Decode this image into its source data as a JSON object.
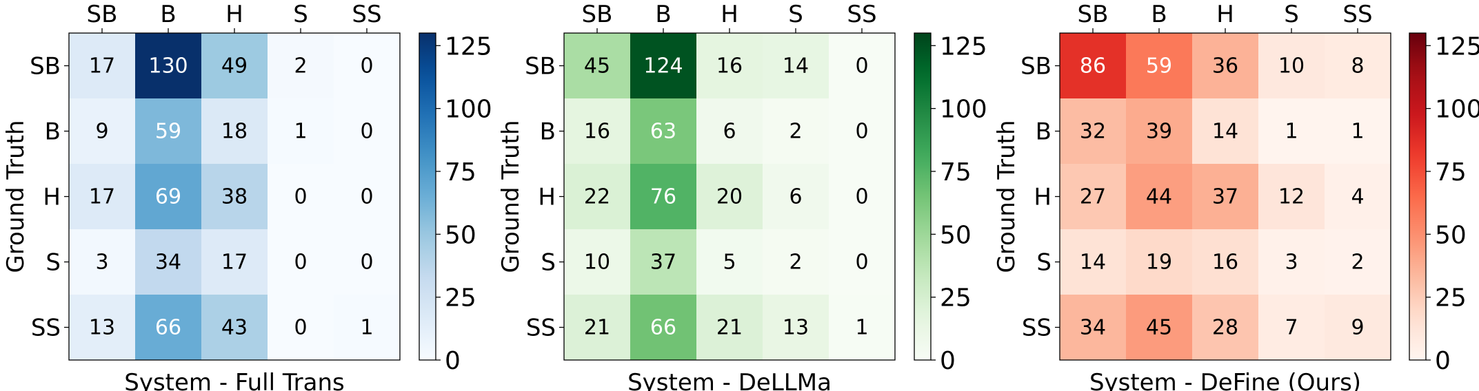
{
  "figure": {
    "panels": [
      "Full Trans",
      "DeLLMa",
      "DeFine (Ours)"
    ]
  },
  "chart_data": [
    {
      "type": "heatmap",
      "xlabel": "System - Full Trans",
      "ylabel": "Ground Truth",
      "x_categories": [
        "SB",
        "B",
        "H",
        "S",
        "SS"
      ],
      "y_categories": [
        "SB",
        "B",
        "H",
        "S",
        "SS"
      ],
      "values": [
        [
          17,
          130,
          49,
          2,
          0
        ],
        [
          9,
          59,
          18,
          1,
          0
        ],
        [
          17,
          69,
          38,
          0,
          0
        ],
        [
          3,
          34,
          17,
          0,
          0
        ],
        [
          13,
          66,
          43,
          0,
          1
        ]
      ],
      "colorbar": {
        "range": [
          0,
          130
        ],
        "ticks": [
          0,
          25,
          50,
          75,
          100,
          125
        ]
      },
      "colormap": "Blues",
      "colors": {
        "low": "#f7fbff",
        "high": "#08306b"
      }
    },
    {
      "type": "heatmap",
      "xlabel": "System - DeLLMa",
      "ylabel": "Ground Truth",
      "x_categories": [
        "SB",
        "B",
        "H",
        "S",
        "SS"
      ],
      "y_categories": [
        "SB",
        "B",
        "H",
        "S",
        "SS"
      ],
      "values": [
        [
          45,
          124,
          16,
          14,
          0
        ],
        [
          16,
          63,
          6,
          2,
          0
        ],
        [
          22,
          76,
          20,
          6,
          0
        ],
        [
          10,
          37,
          5,
          2,
          0
        ],
        [
          21,
          66,
          21,
          13,
          1
        ]
      ],
      "colorbar": {
        "range": [
          0,
          130
        ],
        "ticks": [
          0,
          25,
          50,
          75,
          100,
          125
        ]
      },
      "colormap": "Greens",
      "colors": {
        "low": "#f7fcf5",
        "high": "#00441b"
      }
    },
    {
      "type": "heatmap",
      "xlabel": "System - DeFine (Ours)",
      "ylabel": "Ground Truth",
      "x_categories": [
        "SB",
        "B",
        "H",
        "S",
        "SS"
      ],
      "y_categories": [
        "SB",
        "B",
        "H",
        "S",
        "SS"
      ],
      "values": [
        [
          86,
          59,
          36,
          10,
          8
        ],
        [
          32,
          39,
          14,
          1,
          1
        ],
        [
          27,
          44,
          37,
          12,
          4
        ],
        [
          14,
          19,
          16,
          3,
          2
        ],
        [
          34,
          45,
          28,
          7,
          9
        ]
      ],
      "colorbar": {
        "range": [
          0,
          130
        ],
        "ticks": [
          0,
          25,
          50,
          75,
          100,
          125
        ]
      },
      "colormap": "Reds",
      "colors": {
        "low": "#fff5f0",
        "high": "#67000d"
      }
    }
  ]
}
